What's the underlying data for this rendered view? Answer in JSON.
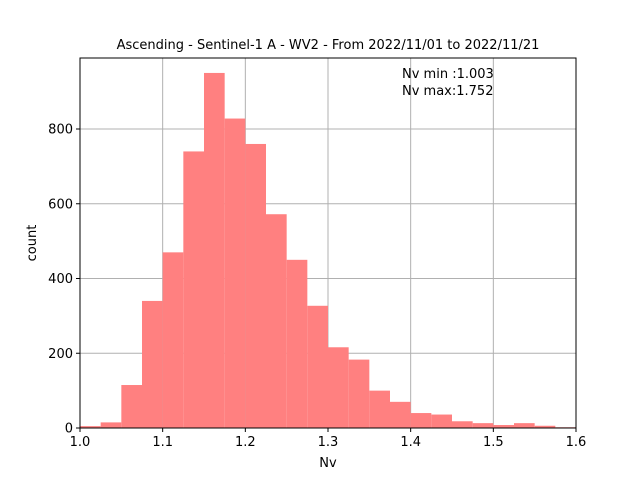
{
  "chart_data": {
    "type": "bar",
    "title": "Ascending - Sentinel-1 A - WV2 - From 2022/11/01 to 2022/11/21",
    "xlabel": "Nv",
    "ylabel": "count",
    "xlim": [
      1.0,
      1.6
    ],
    "ylim": [
      0,
      990
    ],
    "grid": true,
    "bar_color": "#ff8080",
    "x_ticks": [
      1.0,
      1.1,
      1.2,
      1.3,
      1.4,
      1.5,
      1.6
    ],
    "x_tick_labels": [
      "1.0",
      "1.1",
      "1.2",
      "1.3",
      "1.4",
      "1.5",
      "1.6"
    ],
    "y_ticks": [
      0,
      200,
      400,
      600,
      800
    ],
    "y_tick_labels": [
      "0",
      "200",
      "400",
      "600",
      "800"
    ],
    "bin_edges": [
      1.0,
      1.025,
      1.05,
      1.075,
      1.1,
      1.125,
      1.15,
      1.175,
      1.2,
      1.225,
      1.25,
      1.275,
      1.3,
      1.325,
      1.35,
      1.375,
      1.4,
      1.425,
      1.45,
      1.475,
      1.5,
      1.525,
      1.55,
      1.575,
      1.6
    ],
    "values": [
      5,
      15,
      115,
      340,
      470,
      740,
      950,
      828,
      760,
      572,
      450,
      327,
      216,
      183,
      100,
      70,
      40,
      36,
      18,
      13,
      8,
      13,
      6,
      2
    ],
    "annotations": [
      "Nv min :1.003",
      "Nv max:1.752"
    ]
  }
}
